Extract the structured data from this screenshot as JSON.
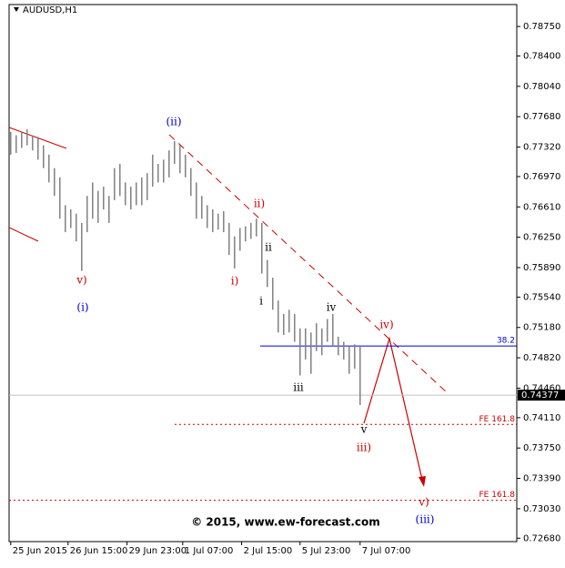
{
  "chart_data": {
    "type": "ohlc",
    "title": "AUDUSD,H1",
    "watermark": "© 2015, www.ew-forecast.com",
    "bar_color": "#808080",
    "high": [
      0.775,
      0.7746,
      0.775,
      0.7753,
      0.7746,
      0.7744,
      0.7734,
      0.7723,
      0.7707,
      0.7696,
      0.7663,
      0.7658,
      0.7653,
      0.7642,
      0.7674,
      0.769,
      0.768,
      0.7685,
      0.7674,
      0.7707,
      0.7712,
      0.769,
      0.7685,
      0.769,
      0.7696,
      0.7701,
      0.7723,
      0.7712,
      0.7717,
      0.7728,
      0.7739,
      0.7734,
      0.7723,
      0.7707,
      0.769,
      0.7674,
      0.7663,
      0.7658,
      0.7653,
      0.7656,
      0.7642,
      0.7626,
      0.7636,
      0.7638,
      0.7642,
      0.7647,
      0.7642,
      0.7598,
      0.7577,
      0.755,
      0.7534,
      0.7539,
      0.7534,
      0.7517,
      0.7517,
      0.7512,
      0.7523,
      0.7517,
      0.7528,
      0.7534,
      0.7507,
      0.7501,
      0.7496,
      0.7498,
      0.7496
    ],
    "low": [
      0.7723,
      0.7725,
      0.7731,
      0.7734,
      0.7728,
      0.7717,
      0.7707,
      0.769,
      0.7674,
      0.7647,
      0.7631,
      0.7636,
      0.762,
      0.7585,
      0.7631,
      0.7647,
      0.7642,
      0.7658,
      0.7642,
      0.7669,
      0.7674,
      0.7663,
      0.7658,
      0.7663,
      0.7663,
      0.7669,
      0.7685,
      0.769,
      0.769,
      0.7696,
      0.7712,
      0.7701,
      0.7696,
      0.7674,
      0.7647,
      0.7647,
      0.7636,
      0.7631,
      0.7634,
      0.7631,
      0.7604,
      0.7588,
      0.7609,
      0.762,
      0.7623,
      0.7626,
      0.7582,
      0.7566,
      0.7539,
      0.7512,
      0.7509,
      0.7512,
      0.7501,
      0.7461,
      0.748,
      0.7463,
      0.749,
      0.7485,
      0.7501,
      0.7496,
      0.7485,
      0.748,
      0.7463,
      0.7469,
      0.7426
    ],
    "ylim": [
      0.7264,
      0.7901
    ],
    "yticks": [
      {
        "value": 0.7875,
        "label": "0.78750"
      },
      {
        "value": 0.784,
        "label": "0.78400"
      },
      {
        "value": 0.7804,
        "label": "0.78040"
      },
      {
        "value": 0.7768,
        "label": "0.77680"
      },
      {
        "value": 0.7732,
        "label": "0.77320"
      },
      {
        "value": 0.7697,
        "label": "0.76970"
      },
      {
        "value": 0.7661,
        "label": "0.76610"
      },
      {
        "value": 0.7625,
        "label": "0.76250"
      },
      {
        "value": 0.7589,
        "label": "0.75890"
      },
      {
        "value": 0.7554,
        "label": "0.75540"
      },
      {
        "value": 0.7518,
        "label": "0.75180"
      },
      {
        "value": 0.7482,
        "label": "0.74820"
      },
      {
        "value": 0.7446,
        "label": "0.74460"
      },
      {
        "value": 0.7411,
        "label": "0.74110"
      },
      {
        "value": 0.7375,
        "label": "0.73750"
      },
      {
        "value": 0.7339,
        "label": "0.73390"
      },
      {
        "value": 0.7303,
        "label": "0.73030"
      },
      {
        "value": 0.7268,
        "label": "0.72680"
      }
    ],
    "xlim": [
      -0.3,
      92.7
    ],
    "xticks": [
      {
        "value": 0,
        "label": "25 Jun 2015"
      },
      {
        "value": 10.5,
        "label": "26 Jun 15:00"
      },
      {
        "value": 21.3,
        "label": "29 Jun 23:00"
      },
      {
        "value": 31.5,
        "label": "1 Jul 07:00"
      },
      {
        "value": 42.3,
        "label": "2 Jul 15:00"
      },
      {
        "value": 53,
        "label": "5 Jul 23:00"
      },
      {
        "value": 64,
        "label": "7 Jul 07:00"
      }
    ],
    "last_price": {
      "value": 0.74377,
      "label": "0.74377"
    },
    "levels": [
      {
        "label": "38.2",
        "value": 0.7496,
        "color": "#0000cc"
      },
      {
        "label": "FE 161.8",
        "value": 0.7403,
        "color": "#cc0000"
      },
      {
        "label": "FE 161.8",
        "value": 0.7313,
        "color": "#cc0000"
      }
    ],
    "annotations": [
      {
        "text": "(ii)",
        "color": "#0000cc"
      },
      {
        "text": "v)",
        "color": "#cc0000"
      },
      {
        "text": "(i)",
        "color": "#0000cc"
      },
      {
        "text": "ii)",
        "color": "#cc0000"
      },
      {
        "text": "i)",
        "color": "#cc0000"
      },
      {
        "text": "ii",
        "color": "#000000"
      },
      {
        "text": "i",
        "color": "#000000"
      },
      {
        "text": "iv",
        "color": "#000000"
      },
      {
        "text": "iv)",
        "color": "#cc0000"
      },
      {
        "text": "iii",
        "color": "#000000"
      },
      {
        "text": "v",
        "color": "#000000"
      },
      {
        "text": "iii)",
        "color": "#cc0000"
      },
      {
        "text": "v)",
        "color": "#cc0000"
      },
      {
        "text": "(iii)",
        "color": "#0000cc"
      }
    ]
  }
}
